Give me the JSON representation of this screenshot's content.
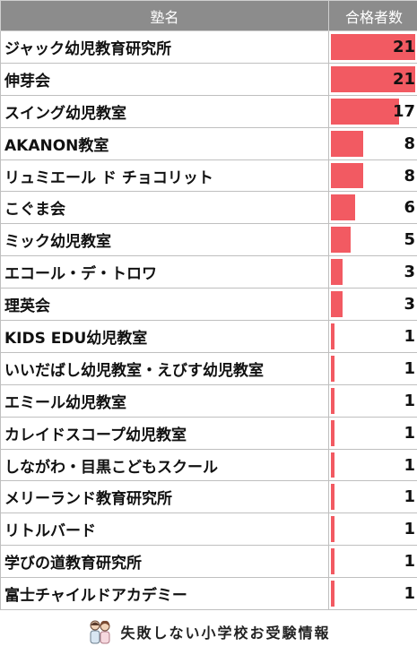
{
  "header": {
    "name_col": "塾名",
    "count_col": "合格者数"
  },
  "chart_data": {
    "type": "bar",
    "orientation": "horizontal",
    "xlim": [
      0,
      21
    ],
    "categories": [
      "ジャック幼児教育研究所",
      "伸芽会",
      "スイング幼児教室",
      "AKANON教室",
      "リュミエール ド チョコリット",
      "こぐま会",
      "ミック幼児教室",
      "エコール・デ・トロワ",
      "理英会",
      "KIDS EDU幼児教室",
      "いいだばし幼児教室・えびす幼児教室",
      "エミール幼児教室",
      "カレイドスコープ幼児教室",
      "しながわ・目黒こどもスクール",
      "メリーランド教育研究所",
      "リトルバード",
      "学びの道教育研究所",
      "富士チャイルドアカデミー"
    ],
    "values": [
      21,
      21,
      17,
      8,
      8,
      6,
      5,
      3,
      3,
      1,
      1,
      1,
      1,
      1,
      1,
      1,
      1,
      1
    ],
    "bar_color": "#f25a62"
  },
  "footer": {
    "text": "失敗しない小学校お受験情報",
    "icon": "parents-icon"
  }
}
